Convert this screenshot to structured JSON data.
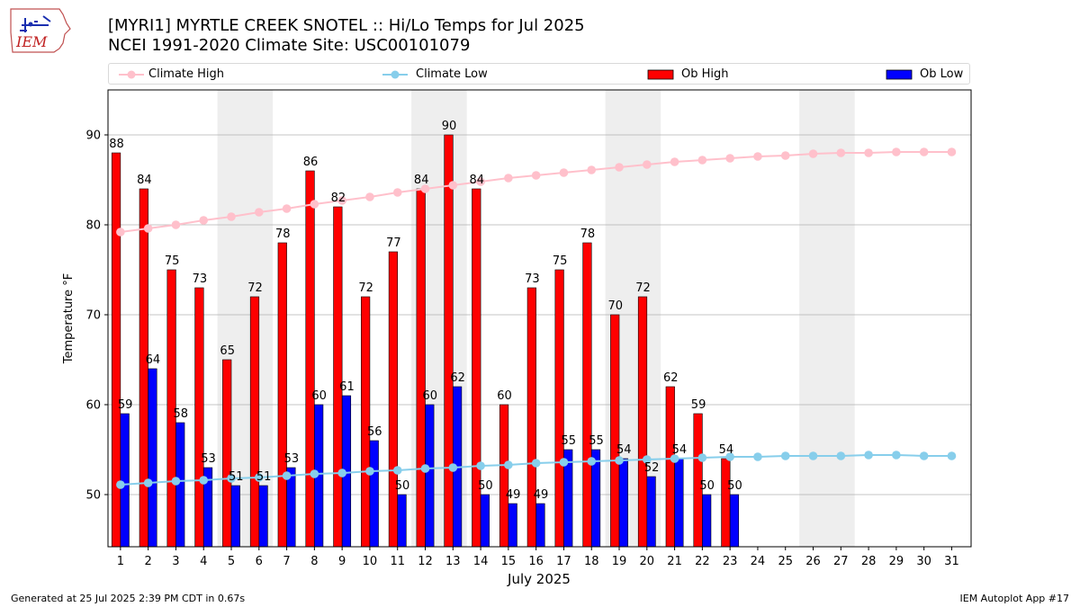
{
  "header": {
    "logo_text": "IEM",
    "title_line1": "[MYRI1] MYRTLE CREEK SNOTEL :: Hi/Lo Temps for Jul 2025",
    "title_line2": "NCEI 1991-2020 Climate Site: USC00101079"
  },
  "footer": {
    "generated": "Generated at 25 Jul 2025 2:39 PM CDT in 0.67s",
    "app": "IEM Autoplot App #17"
  },
  "colors": {
    "climate_high": "#ffc0cb",
    "climate_low": "#87ceeb",
    "ob_high": "#ff0000",
    "ob_low": "#0000ff",
    "weekend_shade": "#eeeeee",
    "grid": "#b0b0b0"
  },
  "chart_data": {
    "type": "bar",
    "xlabel": "July 2025",
    "ylabel": "Temperature °F",
    "ylim": [
      44.2,
      95
    ],
    "yticks": [
      50,
      60,
      70,
      80,
      90
    ],
    "grid": "horizontal",
    "legend_position": "top",
    "categories": [
      "1",
      "2",
      "3",
      "4",
      "5",
      "6",
      "7",
      "8",
      "9",
      "10",
      "11",
      "12",
      "13",
      "14",
      "15",
      "16",
      "17",
      "18",
      "19",
      "20",
      "21",
      "22",
      "23",
      "24",
      "25",
      "26",
      "27",
      "28",
      "29",
      "30",
      "31"
    ],
    "shaded_day_pairs": [
      [
        5,
        6
      ],
      [
        12,
        13
      ],
      [
        19,
        20
      ],
      [
        26,
        27
      ]
    ],
    "series": [
      {
        "name": "Climate High",
        "type": "line",
        "values": [
          79.2,
          79.6,
          80.0,
          80.5,
          80.9,
          81.4,
          81.8,
          82.3,
          82.7,
          83.1,
          83.6,
          84.0,
          84.4,
          84.8,
          85.2,
          85.5,
          85.8,
          86.1,
          86.4,
          86.7,
          87.0,
          87.2,
          87.4,
          87.6,
          87.7,
          87.9,
          88.0,
          88.0,
          88.1,
          88.1,
          88.1
        ]
      },
      {
        "name": "Climate Low",
        "type": "line",
        "values": [
          51.1,
          51.3,
          51.5,
          51.6,
          51.8,
          51.9,
          52.1,
          52.3,
          52.4,
          52.6,
          52.7,
          52.9,
          53.0,
          53.2,
          53.3,
          53.5,
          53.6,
          53.7,
          53.8,
          53.9,
          54.0,
          54.1,
          54.2,
          54.2,
          54.3,
          54.3,
          54.3,
          54.4,
          54.4,
          54.3,
          54.3
        ]
      },
      {
        "name": "Ob High",
        "type": "bar",
        "values": [
          88,
          84,
          75,
          73,
          65,
          72,
          78,
          86,
          82,
          72,
          77,
          84,
          90,
          84,
          60,
          73,
          75,
          78,
          70,
          72,
          62,
          59,
          54,
          null,
          null,
          null,
          null,
          null,
          null,
          null,
          null
        ]
      },
      {
        "name": "Ob Low",
        "type": "bar",
        "values": [
          59,
          64,
          58,
          53,
          51,
          51,
          53,
          60,
          61,
          56,
          50,
          60,
          62,
          50,
          49,
          49,
          55,
          55,
          54,
          52,
          54,
          50,
          50,
          null,
          null,
          null,
          null,
          null,
          null,
          null,
          null
        ]
      }
    ]
  }
}
